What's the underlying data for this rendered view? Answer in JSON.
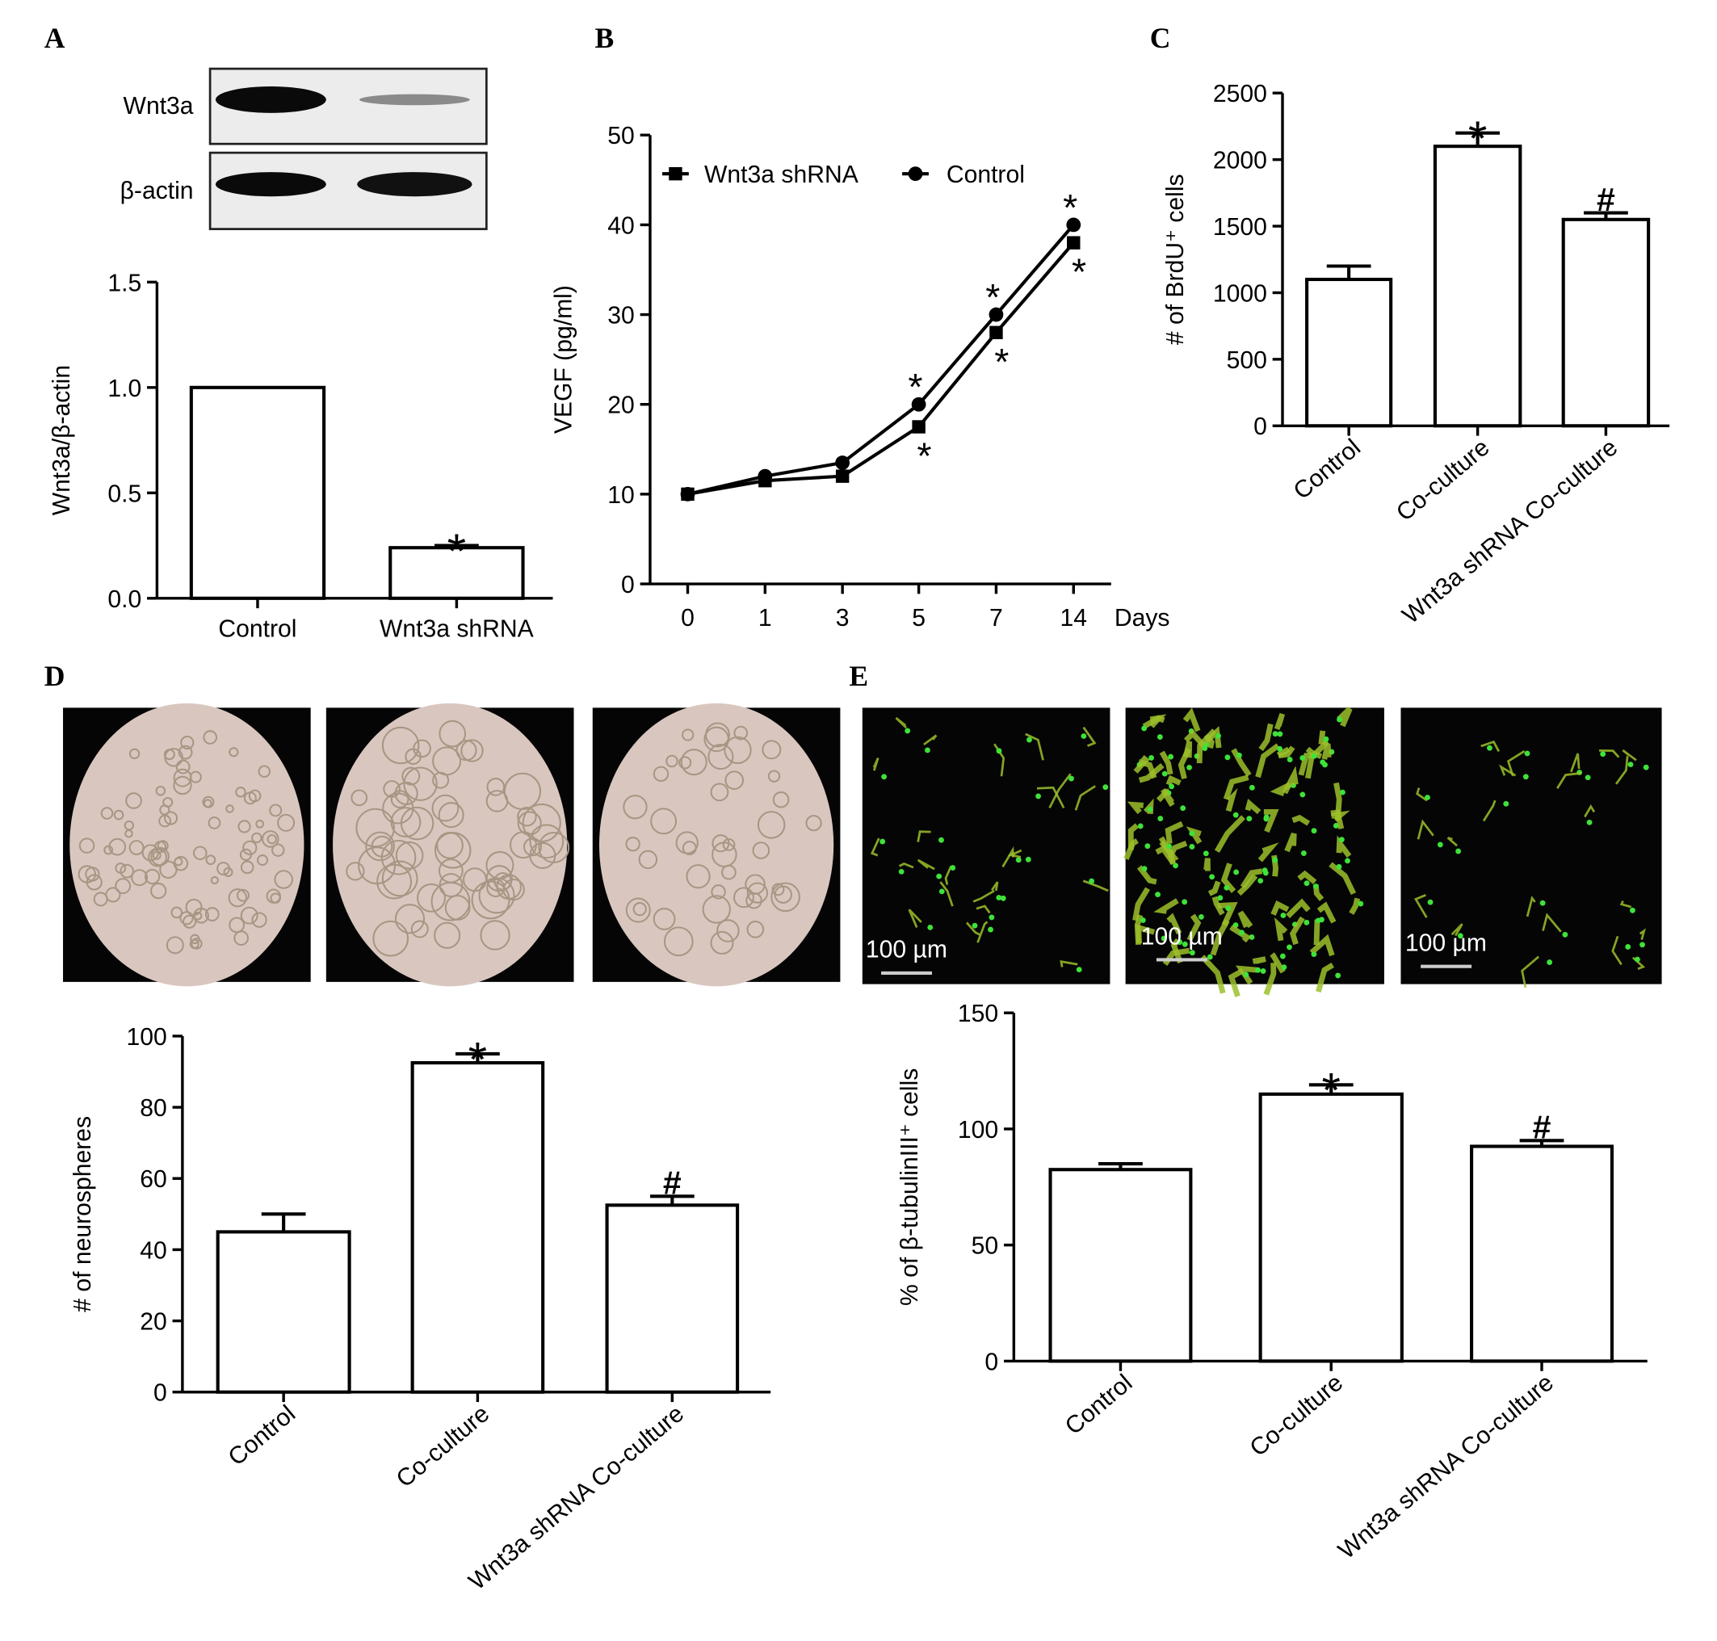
{
  "chart_data": [
    {
      "type": "bar",
      "panel": "A",
      "ylabel": "Wnt3a/β-actin",
      "blot_labels": [
        "Wnt3a",
        "β-actin"
      ],
      "categories": [
        "Control",
        "Wnt3a shRNA"
      ],
      "values": [
        1.0,
        0.24
      ],
      "errors": [
        null,
        0.01
      ],
      "markers": [
        null,
        "*"
      ],
      "color": "#ffffff",
      "ylim": [
        0,
        1.5
      ],
      "yticks": [
        {
          "value": 0,
          "label": "0.0"
        },
        0.5,
        {
          "value": 1,
          "label": "1.0"
        },
        1.5
      ]
    },
    {
      "type": "line",
      "panel": "B",
      "ylabel": "VEGF (pg/ml)",
      "xlabel": "Days",
      "categories": [
        "0",
        "1",
        "3",
        "5",
        "7",
        "14"
      ],
      "series": [
        {
          "name": "Wnt3a shRNA",
          "color": "#000000",
          "marker": "square",
          "values": [
            10,
            11.5,
            12,
            17.5,
            28,
            38
          ],
          "markers": [
            null,
            null,
            null,
            "*",
            "*",
            "*"
          ]
        },
        {
          "name": "Control",
          "color": "#000000",
          "marker": "circle",
          "values": [
            10,
            12,
            13.5,
            20,
            30,
            40
          ],
          "markers": [
            null,
            null,
            null,
            "*",
            "*",
            "*"
          ]
        }
      ],
      "ylim": [
        0,
        50
      ],
      "yticks": [
        0,
        10,
        20,
        30,
        40,
        50
      ]
    },
    {
      "type": "bar",
      "panel": "C",
      "ylabel": "# of BrdU⁺ cells",
      "categories": [
        "Control",
        "Co-culture",
        "Wnt3a shRNA Co-culture"
      ],
      "values": [
        1100,
        2100,
        1550
      ],
      "errors": [
        100,
        100,
        50
      ],
      "markers": [
        null,
        "*",
        "#"
      ],
      "color": "#ffffff",
      "ylim": [
        0,
        2500
      ],
      "yticks": [
        0,
        500,
        1000,
        1500,
        2000,
        2500
      ]
    },
    {
      "type": "bar",
      "panel": "D",
      "ylabel": "# of neurospheres",
      "categories": [
        "Control",
        "Co-culture",
        "Wnt3a shRNA Co-culture"
      ],
      "values": [
        45,
        92.5,
        52.5
      ],
      "errors": [
        5,
        2.5,
        2.5
      ],
      "markers": [
        null,
        "*",
        "#"
      ],
      "color": "#ffffff",
      "ylim": [
        0,
        100
      ],
      "yticks": [
        0,
        20,
        40,
        60,
        80,
        100
      ]
    },
    {
      "type": "bar",
      "panel": "E",
      "ylabel": "% of β-tubulinIII⁺ cells",
      "image_labels": [
        "100 µm",
        "100 µm",
        "100 µm"
      ],
      "categories": [
        "Control",
        "Co-culture",
        "Wnt3a shRNA Co-culture"
      ],
      "values": [
        82.5,
        115,
        92.5
      ],
      "errors": [
        2.5,
        4,
        2.5
      ],
      "markers": [
        null,
        "*",
        "#"
      ],
      "color": "#ffffff",
      "ylim": [
        0,
        150
      ],
      "yticks": [
        0,
        50,
        100,
        150
      ]
    }
  ]
}
